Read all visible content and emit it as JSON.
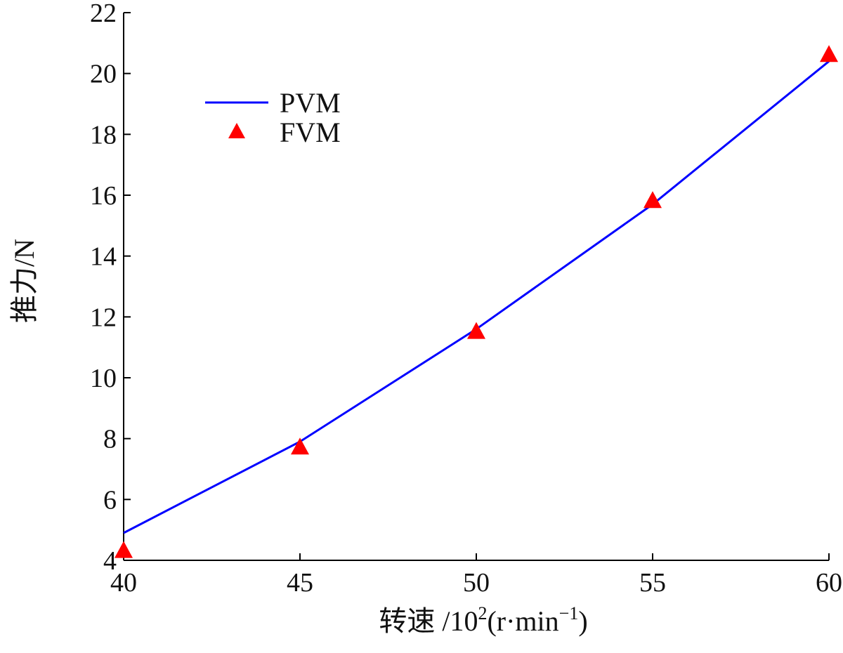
{
  "chart_data": {
    "type": "line",
    "x_axis": {
      "label_text": "转速 /10",
      "label_exp": "2",
      "label_unit_open": "(r·min",
      "label_unit_exp": "−1",
      "label_unit_close": ")",
      "range": [
        40,
        60
      ],
      "ticks": [
        40,
        45,
        50,
        55,
        60
      ],
      "tick_labels": [
        "40",
        "45",
        "50",
        "55",
        "60"
      ]
    },
    "y_axis": {
      "label": "推力/N",
      "range": [
        4,
        22
      ],
      "ticks": [
        4,
        6,
        8,
        10,
        12,
        14,
        16,
        18,
        20,
        22
      ],
      "tick_labels": [
        "4",
        "6",
        "8",
        "10",
        "12",
        "14",
        "16",
        "18",
        "20",
        "22"
      ]
    },
    "series": [
      {
        "name": "PVM",
        "kind": "line",
        "color": "#0000ff",
        "x": [
          40,
          45,
          50,
          55,
          60
        ],
        "y": [
          4.9,
          7.9,
          11.6,
          15.7,
          20.4
        ]
      },
      {
        "name": "FVM",
        "kind": "marker",
        "marker": "triangle",
        "color": "#ff0000",
        "x": [
          40,
          45,
          50,
          55,
          60
        ],
        "y": [
          4.3,
          7.7,
          11.5,
          15.8,
          20.6
        ]
      }
    ],
    "legend": {
      "position": "top-left"
    },
    "grid": false
  }
}
